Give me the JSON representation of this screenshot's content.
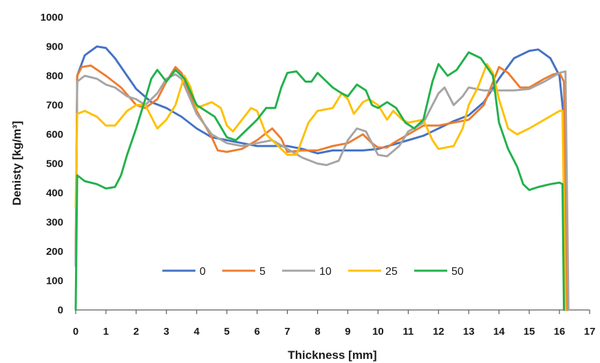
{
  "chart_data": {
    "type": "line",
    "title": "",
    "xlabel": "Thickness [mm]",
    "ylabel": "Denisty [kg/m³]",
    "xlim": [
      0,
      17
    ],
    "ylim": [
      0,
      1000
    ],
    "x_ticks": [
      "0",
      "1",
      "2",
      "3",
      "4",
      "5",
      "6",
      "7",
      "8",
      "9",
      "10",
      "11",
      "12",
      "13",
      "14",
      "15",
      "16",
      "17"
    ],
    "y_ticks": [
      "0",
      "100",
      "200",
      "300",
      "400",
      "500",
      "600",
      "700",
      "800",
      "900",
      "1000"
    ],
    "grid": false,
    "legend_position": "bottom-center",
    "series": [
      {
        "name": "0",
        "color": "#4472C4",
        "points": [
          [
            0,
            150
          ],
          [
            0.05,
            800
          ],
          [
            0.3,
            870
          ],
          [
            0.7,
            900
          ],
          [
            1.0,
            895
          ],
          [
            1.3,
            860
          ],
          [
            1.7,
            800
          ],
          [
            2.0,
            755
          ],
          [
            2.5,
            710
          ],
          [
            3.0,
            690
          ],
          [
            3.5,
            660
          ],
          [
            4.0,
            620
          ],
          [
            4.5,
            590
          ],
          [
            5.0,
            580
          ],
          [
            5.5,
            570
          ],
          [
            6.0,
            560
          ],
          [
            6.5,
            560
          ],
          [
            7.0,
            560
          ],
          [
            7.5,
            550
          ],
          [
            8.0,
            535
          ],
          [
            8.5,
            545
          ],
          [
            9.0,
            545
          ],
          [
            9.5,
            545
          ],
          [
            10.0,
            550
          ],
          [
            10.5,
            565
          ],
          [
            11.0,
            580
          ],
          [
            11.5,
            595
          ],
          [
            12.0,
            620
          ],
          [
            12.5,
            645
          ],
          [
            13.0,
            665
          ],
          [
            13.5,
            710
          ],
          [
            14.0,
            790
          ],
          [
            14.5,
            860
          ],
          [
            15.0,
            885
          ],
          [
            15.3,
            890
          ],
          [
            15.7,
            860
          ],
          [
            16.0,
            800
          ],
          [
            16.15,
            650
          ],
          [
            16.2,
            350
          ],
          [
            16.25,
            0
          ]
        ]
      },
      {
        "name": "5",
        "color": "#ED7D31",
        "points": [
          [
            0,
            200
          ],
          [
            0.05,
            800
          ],
          [
            0.2,
            830
          ],
          [
            0.5,
            835
          ],
          [
            1.0,
            800
          ],
          [
            1.5,
            760
          ],
          [
            2.0,
            700
          ],
          [
            2.3,
            690
          ],
          [
            2.7,
            720
          ],
          [
            3.0,
            780
          ],
          [
            3.3,
            830
          ],
          [
            3.5,
            810
          ],
          [
            4.0,
            680
          ],
          [
            4.5,
            590
          ],
          [
            4.7,
            545
          ],
          [
            5.0,
            540
          ],
          [
            5.5,
            550
          ],
          [
            6.0,
            580
          ],
          [
            6.5,
            620
          ],
          [
            6.8,
            585
          ],
          [
            7.0,
            540
          ],
          [
            7.5,
            545
          ],
          [
            8.0,
            545
          ],
          [
            8.5,
            560
          ],
          [
            9.0,
            570
          ],
          [
            9.5,
            600
          ],
          [
            9.8,
            570
          ],
          [
            10.0,
            555
          ],
          [
            10.3,
            555
          ],
          [
            10.5,
            570
          ],
          [
            11.0,
            600
          ],
          [
            11.5,
            630
          ],
          [
            12.0,
            630
          ],
          [
            12.5,
            640
          ],
          [
            13.0,
            650
          ],
          [
            13.5,
            700
          ],
          [
            14.0,
            830
          ],
          [
            14.3,
            810
          ],
          [
            14.7,
            760
          ],
          [
            15.0,
            760
          ],
          [
            15.5,
            790
          ],
          [
            15.8,
            805
          ],
          [
            16.0,
            810
          ],
          [
            16.15,
            780
          ],
          [
            16.25,
            0
          ]
        ]
      },
      {
        "name": "10",
        "color": "#A5A5A5",
        "points": [
          [
            0,
            150
          ],
          [
            0.05,
            780
          ],
          [
            0.3,
            800
          ],
          [
            0.7,
            790
          ],
          [
            1.0,
            770
          ],
          [
            1.3,
            760
          ],
          [
            1.7,
            730
          ],
          [
            2.0,
            720
          ],
          [
            2.3,
            700
          ],
          [
            2.7,
            740
          ],
          [
            3.0,
            790
          ],
          [
            3.3,
            805
          ],
          [
            3.5,
            790
          ],
          [
            4.0,
            670
          ],
          [
            4.5,
            600
          ],
          [
            5.0,
            570
          ],
          [
            5.5,
            560
          ],
          [
            6.0,
            570
          ],
          [
            6.5,
            580
          ],
          [
            7.0,
            550
          ],
          [
            7.5,
            520
          ],
          [
            8.0,
            500
          ],
          [
            8.3,
            495
          ],
          [
            8.7,
            510
          ],
          [
            9.0,
            580
          ],
          [
            9.3,
            620
          ],
          [
            9.6,
            610
          ],
          [
            10.0,
            530
          ],
          [
            10.3,
            525
          ],
          [
            10.7,
            560
          ],
          [
            11.0,
            610
          ],
          [
            11.5,
            640
          ],
          [
            12.0,
            740
          ],
          [
            12.2,
            760
          ],
          [
            12.5,
            700
          ],
          [
            12.8,
            730
          ],
          [
            13.0,
            760
          ],
          [
            13.5,
            750
          ],
          [
            14.0,
            750
          ],
          [
            14.5,
            750
          ],
          [
            15.0,
            755
          ],
          [
            15.5,
            780
          ],
          [
            16.0,
            810
          ],
          [
            16.2,
            815
          ],
          [
            16.3,
            0
          ]
        ]
      },
      {
        "name": "25",
        "color": "#FFC000",
        "points": [
          [
            0,
            350
          ],
          [
            0.05,
            670
          ],
          [
            0.3,
            680
          ],
          [
            0.7,
            660
          ],
          [
            1.0,
            630
          ],
          [
            1.3,
            630
          ],
          [
            1.7,
            680
          ],
          [
            2.0,
            700
          ],
          [
            2.3,
            700
          ],
          [
            2.7,
            620
          ],
          [
            3.0,
            650
          ],
          [
            3.3,
            700
          ],
          [
            3.6,
            800
          ],
          [
            3.8,
            760
          ],
          [
            4.0,
            690
          ],
          [
            4.5,
            710
          ],
          [
            4.8,
            690
          ],
          [
            5.0,
            630
          ],
          [
            5.2,
            610
          ],
          [
            5.5,
            650
          ],
          [
            5.8,
            690
          ],
          [
            6.0,
            680
          ],
          [
            6.3,
            600
          ],
          [
            6.7,
            560
          ],
          [
            7.0,
            530
          ],
          [
            7.3,
            530
          ],
          [
            7.7,
            640
          ],
          [
            8.0,
            680
          ],
          [
            8.5,
            690
          ],
          [
            8.8,
            740
          ],
          [
            9.0,
            720
          ],
          [
            9.2,
            670
          ],
          [
            9.5,
            710
          ],
          [
            9.7,
            720
          ],
          [
            10.0,
            700
          ],
          [
            10.3,
            650
          ],
          [
            10.5,
            680
          ],
          [
            10.8,
            650
          ],
          [
            11.0,
            640
          ],
          [
            11.5,
            650
          ],
          [
            11.8,
            580
          ],
          [
            12.0,
            550
          ],
          [
            12.5,
            560
          ],
          [
            12.8,
            620
          ],
          [
            13.0,
            700
          ],
          [
            13.3,
            760
          ],
          [
            13.6,
            840
          ],
          [
            13.8,
            810
          ],
          [
            14.0,
            720
          ],
          [
            14.3,
            620
          ],
          [
            14.6,
            600
          ],
          [
            15.0,
            620
          ],
          [
            15.5,
            650
          ],
          [
            16.0,
            680
          ],
          [
            16.1,
            680
          ],
          [
            16.2,
            0
          ]
        ]
      },
      {
        "name": "50",
        "color": "#22B14C",
        "points": [
          [
            0,
            0
          ],
          [
            0.05,
            460
          ],
          [
            0.3,
            440
          ],
          [
            0.7,
            430
          ],
          [
            1.0,
            415
          ],
          [
            1.3,
            420
          ],
          [
            1.5,
            460
          ],
          [
            1.7,
            530
          ],
          [
            2.0,
            620
          ],
          [
            2.3,
            720
          ],
          [
            2.5,
            790
          ],
          [
            2.7,
            820
          ],
          [
            3.0,
            780
          ],
          [
            3.3,
            820
          ],
          [
            3.6,
            790
          ],
          [
            4.0,
            700
          ],
          [
            4.3,
            680
          ],
          [
            4.6,
            660
          ],
          [
            5.0,
            590
          ],
          [
            5.3,
            580
          ],
          [
            5.7,
            620
          ],
          [
            6.0,
            650
          ],
          [
            6.3,
            690
          ],
          [
            6.6,
            690
          ],
          [
            6.8,
            760
          ],
          [
            7.0,
            810
          ],
          [
            7.3,
            815
          ],
          [
            7.6,
            780
          ],
          [
            7.8,
            780
          ],
          [
            8.0,
            810
          ],
          [
            8.2,
            790
          ],
          [
            8.5,
            760
          ],
          [
            8.8,
            740
          ],
          [
            9.0,
            730
          ],
          [
            9.3,
            770
          ],
          [
            9.6,
            750
          ],
          [
            9.8,
            700
          ],
          [
            10.0,
            690
          ],
          [
            10.3,
            710
          ],
          [
            10.6,
            690
          ],
          [
            10.9,
            640
          ],
          [
            11.2,
            620
          ],
          [
            11.5,
            650
          ],
          [
            11.8,
            780
          ],
          [
            12.0,
            840
          ],
          [
            12.3,
            800
          ],
          [
            12.6,
            820
          ],
          [
            13.0,
            880
          ],
          [
            13.4,
            860
          ],
          [
            13.8,
            800
          ],
          [
            14.0,
            640
          ],
          [
            14.3,
            550
          ],
          [
            14.6,
            490
          ],
          [
            14.8,
            430
          ],
          [
            15.0,
            410
          ],
          [
            15.3,
            420
          ],
          [
            15.7,
            430
          ],
          [
            16.0,
            435
          ],
          [
            16.1,
            430
          ],
          [
            16.15,
            0
          ]
        ]
      }
    ]
  }
}
